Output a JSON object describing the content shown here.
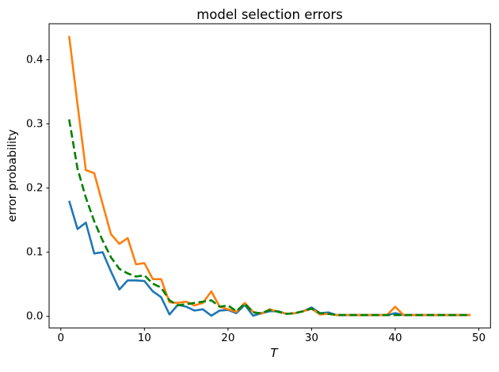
{
  "chart_data": {
    "type": "line",
    "title": "model selection errors",
    "xlabel": "T",
    "ylabel": "error probability",
    "grid": false,
    "legend": "none",
    "background_color": "#ffffff",
    "spine_color": "#000000",
    "xlim": [
      -1.4,
      51.4
    ],
    "ylim": [
      -0.018,
      0.456
    ],
    "xticks": [
      0,
      10,
      20,
      30,
      40,
      50
    ],
    "xtick_labels": [
      "0",
      "10",
      "20",
      "30",
      "40",
      "50"
    ],
    "yticks": [
      0.0,
      0.1,
      0.2,
      0.3,
      0.4
    ],
    "ytick_labels": [
      "0.0",
      "0.1",
      "0.2",
      "0.3",
      "0.4"
    ],
    "x": [
      1,
      2,
      3,
      4,
      5,
      6,
      7,
      8,
      9,
      10,
      11,
      12,
      13,
      14,
      15,
      16,
      17,
      18,
      19,
      20,
      21,
      22,
      23,
      24,
      25,
      26,
      27,
      28,
      29,
      30,
      31,
      32,
      33,
      34,
      35,
      36,
      37,
      38,
      39,
      40,
      41,
      42,
      43,
      44,
      45,
      46,
      47,
      48,
      49
    ],
    "series": [
      {
        "name": "blue-solid",
        "color": "#1f77b4",
        "dash": "solid",
        "values": [
          0.18,
          0.136,
          0.146,
          0.098,
          0.1,
          0.07,
          0.042,
          0.056,
          0.056,
          0.055,
          0.039,
          0.03,
          0.003,
          0.018,
          0.015,
          0.009,
          0.011,
          0.001,
          0.009,
          0.01,
          0.005,
          0.018,
          0.001,
          0.005,
          0.008,
          0.008,
          0.004,
          0.005,
          0.008,
          0.014,
          0.005,
          0.006,
          0.002,
          0.002,
          0.002,
          0.002,
          0.002,
          0.002,
          0.002,
          0.005,
          0.002,
          0.002,
          0.002,
          0.002,
          0.002,
          0.002,
          0.002,
          0.002,
          0.002
        ]
      },
      {
        "name": "orange-solid",
        "color": "#ff7f0e",
        "dash": "solid",
        "values": [
          0.437,
          0.33,
          0.228,
          0.223,
          0.175,
          0.128,
          0.113,
          0.122,
          0.081,
          0.083,
          0.058,
          0.058,
          0.022,
          0.021,
          0.023,
          0.017,
          0.021,
          0.039,
          0.015,
          0.011,
          0.007,
          0.021,
          0.007,
          0.004,
          0.011,
          0.007,
          0.004,
          0.005,
          0.008,
          0.012,
          0.003,
          0.004,
          0.002,
          0.002,
          0.002,
          0.002,
          0.002,
          0.002,
          0.002,
          0.015,
          0.002,
          0.002,
          0.002,
          0.002,
          0.002,
          0.002,
          0.002,
          0.002,
          0.002
        ]
      },
      {
        "name": "green-dashed",
        "color": "#008000",
        "dash": "dashed",
        "values": [
          0.307,
          0.23,
          0.185,
          0.148,
          0.118,
          0.092,
          0.074,
          0.067,
          0.062,
          0.064,
          0.051,
          0.045,
          0.025,
          0.017,
          0.019,
          0.021,
          0.023,
          0.025,
          0.015,
          0.017,
          0.008,
          0.02,
          0.006,
          0.005,
          0.01,
          0.007,
          0.004,
          0.005,
          0.008,
          0.012,
          0.005,
          0.004,
          0.002,
          0.002,
          0.002,
          0.002,
          0.002,
          0.002,
          0.002,
          0.002,
          0.002,
          0.002,
          0.002,
          0.002,
          0.002,
          0.002,
          0.002,
          0.002,
          0.002
        ]
      }
    ]
  }
}
